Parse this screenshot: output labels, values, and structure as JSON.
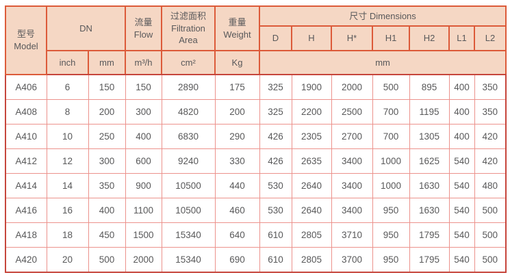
{
  "colors": {
    "header_bg": "#f5d7c4",
    "outer_border": "#c6453b",
    "header_border": "#dc5a39",
    "body_border": "#ec928c",
    "text": "#58585a"
  },
  "header": {
    "model": "型号\nModel",
    "dn": "DN",
    "flow": "流量\nFlow",
    "filtration_area": "过滤面积\nFiltration\nArea",
    "weight": "重量\nWeight",
    "dimensions": "尺寸 Dimensions",
    "dimension_columns": [
      "D",
      "H",
      "H*",
      "H1",
      "H2",
      "L1",
      "L2"
    ],
    "units": {
      "dn_inch": "inch",
      "dn_mm": "mm",
      "flow": "m³/h",
      "filtration_area": "cm²",
      "weight": "Kg",
      "dimensions_mm": "mm"
    }
  },
  "chart_data": {
    "type": "table",
    "columns": [
      "型号 Model",
      "DN inch",
      "DN mm",
      "流量 Flow m³/h",
      "过滤面积 Filtration Area cm²",
      "重量 Weight Kg",
      "D mm",
      "H mm",
      "H* mm",
      "H1 mm",
      "H2 mm",
      "L1 mm",
      "L2 mm"
    ],
    "rows": [
      [
        "A406",
        "6",
        "150",
        "150",
        "2890",
        "175",
        "325",
        "1900",
        "2000",
        "500",
        "895",
        "400",
        "350"
      ],
      [
        "A408",
        "8",
        "200",
        "300",
        "4820",
        "200",
        "325",
        "2200",
        "2500",
        "700",
        "1195",
        "400",
        "350"
      ],
      [
        "A410",
        "10",
        "250",
        "400",
        "6830",
        "290",
        "426",
        "2305",
        "2700",
        "700",
        "1305",
        "400",
        "420"
      ],
      [
        "A412",
        "12",
        "300",
        "600",
        "9240",
        "330",
        "426",
        "2635",
        "3400",
        "1000",
        "1625",
        "540",
        "420"
      ],
      [
        "A414",
        "14",
        "350",
        "900",
        "10500",
        "440",
        "530",
        "2640",
        "3400",
        "1000",
        "1630",
        "540",
        "480"
      ],
      [
        "A416",
        "16",
        "400",
        "1100",
        "10500",
        "460",
        "530",
        "2640",
        "3400",
        "950",
        "1630",
        "540",
        "500"
      ],
      [
        "A418",
        "18",
        "450",
        "1500",
        "15340",
        "640",
        "610",
        "2805",
        "3710",
        "950",
        "1795",
        "540",
        "500"
      ],
      [
        "A420",
        "20",
        "500",
        "2000",
        "15340",
        "690",
        "610",
        "2805",
        "3700",
        "950",
        "1795",
        "540",
        "500"
      ]
    ]
  }
}
